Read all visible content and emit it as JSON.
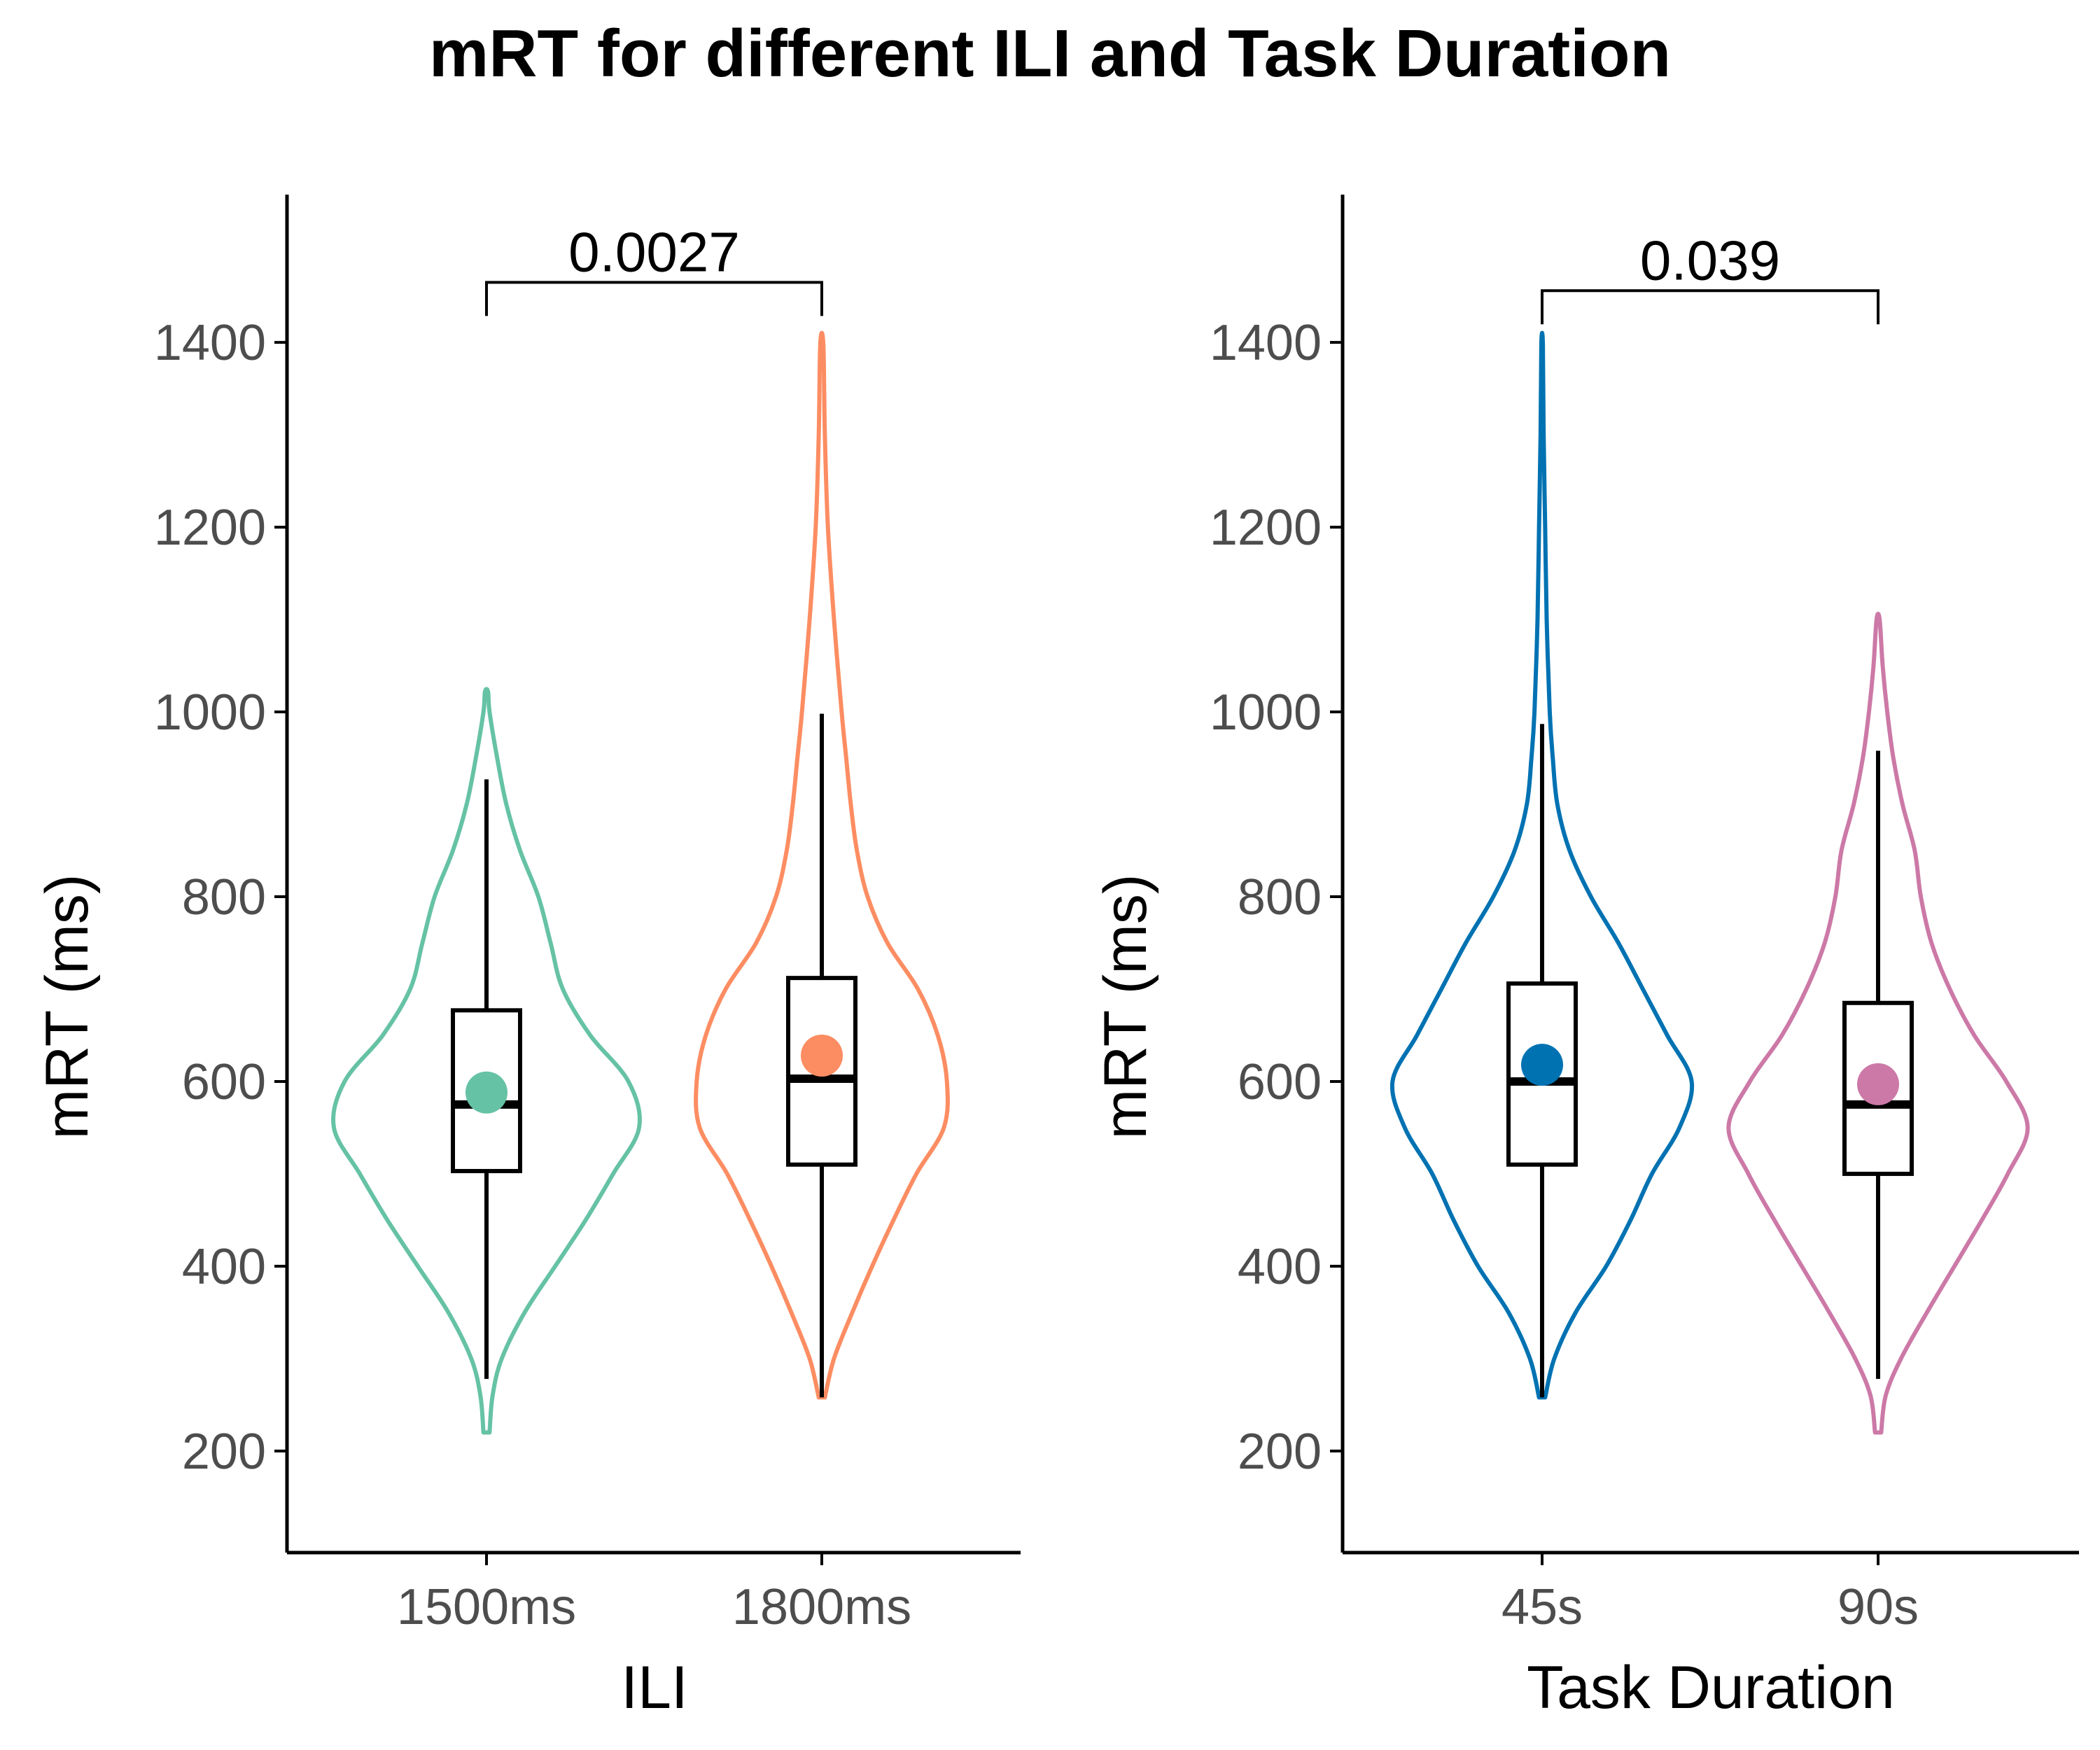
{
  "title": "mRT for different ILI and Task Duration",
  "chart_data": [
    {
      "type": "violin",
      "xlabel": "ILI",
      "ylabel": "mRT (ms)",
      "ylim": [
        90,
        1560
      ],
      "yticks": [
        200,
        400,
        600,
        800,
        1000,
        1200,
        1400
      ],
      "grid": false,
      "legend": "none",
      "categories": [
        "1500ms",
        "1800ms"
      ],
      "series": [
        {
          "category": "1500ms",
          "color": "#66c2a5",
          "min": 220,
          "max": 1022,
          "box": {
            "q1": 503,
            "median": 575,
            "q3": 677,
            "whisker_low": 278,
            "whisker_high": 927
          },
          "mean": 588,
          "density": [
            [
              220,
              0.02
            ],
            [
              260,
              0.04
            ],
            [
              300,
              0.1
            ],
            [
              350,
              0.25
            ],
            [
              400,
              0.45
            ],
            [
              450,
              0.65
            ],
            [
              500,
              0.83
            ],
            [
              550,
              1.0
            ],
            [
              600,
              0.93
            ],
            [
              650,
              0.68
            ],
            [
              700,
              0.5
            ],
            [
              750,
              0.42
            ],
            [
              800,
              0.34
            ],
            [
              850,
              0.22
            ],
            [
              900,
              0.13
            ],
            [
              950,
              0.07
            ],
            [
              1000,
              0.02
            ],
            [
              1022,
              0.01
            ]
          ]
        },
        {
          "category": "1800ms",
          "color": "#fc8d62",
          "min": 258,
          "max": 1398,
          "box": {
            "q1": 510,
            "median": 603,
            "q3": 712,
            "whisker_low": 258,
            "whisker_high": 998
          },
          "mean": 628,
          "density": [
            [
              258,
              0.02
            ],
            [
              300,
              0.08
            ],
            [
              350,
              0.2
            ],
            [
              400,
              0.33
            ],
            [
              450,
              0.47
            ],
            [
              500,
              0.62
            ],
            [
              550,
              0.8
            ],
            [
              600,
              0.82
            ],
            [
              650,
              0.76
            ],
            [
              700,
              0.63
            ],
            [
              750,
              0.43
            ],
            [
              800,
              0.3
            ],
            [
              850,
              0.23
            ],
            [
              900,
              0.19
            ],
            [
              950,
              0.16
            ],
            [
              1000,
              0.13
            ],
            [
              1100,
              0.08
            ],
            [
              1200,
              0.04
            ],
            [
              1300,
              0.02
            ],
            [
              1398,
              0.01
            ]
          ]
        }
      ],
      "comparison": {
        "label": "0.0027",
        "from": "1500ms",
        "to": "1800ms",
        "y": 1465
      }
    },
    {
      "type": "violin",
      "xlabel": "Task Duration",
      "ylabel": "mRT (ms)",
      "ylim": [
        90,
        1560
      ],
      "yticks": [
        200,
        400,
        600,
        800,
        1000,
        1200,
        1400
      ],
      "grid": false,
      "legend": "none",
      "categories": [
        "45s",
        "90s"
      ],
      "series": [
        {
          "category": "45s",
          "color": "#0072b2",
          "min": 258,
          "max": 1398,
          "box": {
            "q1": 510,
            "median": 600,
            "q3": 706,
            "whisker_low": 258,
            "whisker_high": 987
          },
          "mean": 618,
          "density": [
            [
              258,
              0.02
            ],
            [
              300,
              0.08
            ],
            [
              350,
              0.22
            ],
            [
              400,
              0.42
            ],
            [
              450,
              0.58
            ],
            [
              500,
              0.72
            ],
            [
              550,
              0.9
            ],
            [
              600,
              0.98
            ],
            [
              650,
              0.82
            ],
            [
              700,
              0.66
            ],
            [
              750,
              0.5
            ],
            [
              800,
              0.32
            ],
            [
              850,
              0.18
            ],
            [
              900,
              0.1
            ],
            [
              950,
              0.07
            ],
            [
              1000,
              0.05
            ],
            [
              1100,
              0.03
            ],
            [
              1200,
              0.02
            ],
            [
              1300,
              0.01
            ],
            [
              1398,
              0.005
            ]
          ]
        },
        {
          "category": "90s",
          "color": "#cc79a7",
          "min": 220,
          "max": 1100,
          "box": {
            "q1": 500,
            "median": 575,
            "q3": 685,
            "whisker_low": 278,
            "whisker_high": 958
          },
          "mean": 597,
          "density": [
            [
              220,
              0.02
            ],
            [
              260,
              0.05
            ],
            [
              300,
              0.15
            ],
            [
              350,
              0.32
            ],
            [
              400,
              0.5
            ],
            [
              450,
              0.68
            ],
            [
              500,
              0.85
            ],
            [
              550,
              0.98
            ],
            [
              600,
              0.84
            ],
            [
              650,
              0.63
            ],
            [
              700,
              0.47
            ],
            [
              750,
              0.35
            ],
            [
              800,
              0.28
            ],
            [
              850,
              0.24
            ],
            [
              900,
              0.16
            ],
            [
              950,
              0.1
            ],
            [
              1000,
              0.06
            ],
            [
              1050,
              0.03
            ],
            [
              1100,
              0.01
            ]
          ]
        }
      ],
      "comparison": {
        "label": "0.039",
        "from": "45s",
        "to": "90s",
        "y": 1456
      }
    }
  ]
}
